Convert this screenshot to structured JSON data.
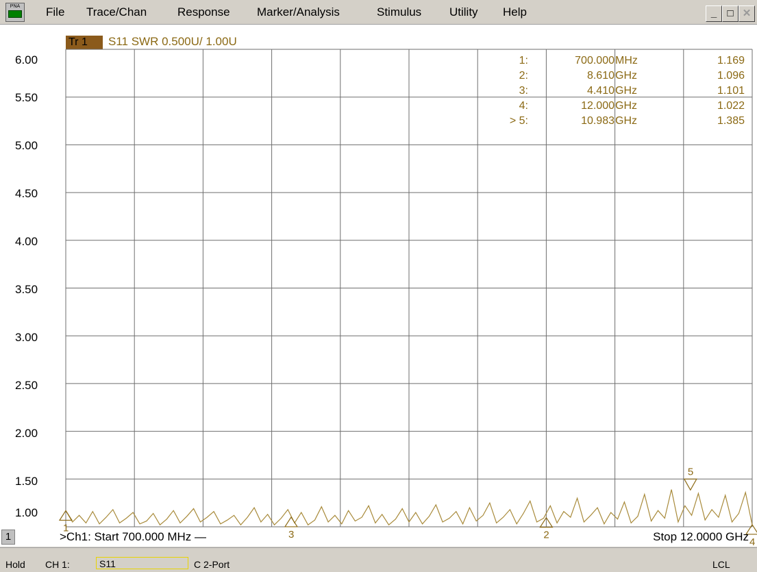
{
  "menu": {
    "app_icon_label": "PNA",
    "items": [
      "File",
      "Trace/Chan",
      "Response",
      "Marker/Analysis",
      "Stimulus",
      "Utility",
      "Help"
    ]
  },
  "window_controls": {
    "minimize": "_",
    "restore": "□",
    "close": "✕"
  },
  "trace": {
    "badge": "Tr 1",
    "label": "S11 SWR 0.500U/  1.00U"
  },
  "markers_table": [
    {
      "id": "1:",
      "value": "700.000",
      "unit": "MHz",
      "reading": "1.169"
    },
    {
      "id": "2:",
      "value": "8.610",
      "unit": "GHz",
      "reading": "1.096"
    },
    {
      "id": "3:",
      "value": "4.410",
      "unit": "GHz",
      "reading": "1.101"
    },
    {
      "id": "4:",
      "value": "12.000",
      "unit": "GHz",
      "reading": "1.022"
    },
    {
      "id": "> 5:",
      "value": "10.983",
      "unit": "GHz",
      "reading": "1.385"
    }
  ],
  "chart_data": {
    "type": "line",
    "x_start_ghz": 0.7,
    "x_stop_ghz": 12.0,
    "ylim": [
      1.0,
      6.0
    ],
    "y_ticks": [
      "6.00",
      "5.50",
      "5.00",
      "4.50",
      "4.00",
      "3.50",
      "3.00",
      "2.50",
      "2.00",
      "1.50",
      "1.00"
    ],
    "trace_color": "#8b6914",
    "marker_points": [
      {
        "label": "1",
        "x": 0.7,
        "y": 1.169
      },
      {
        "label": "2",
        "x": 8.61,
        "y": 1.096
      },
      {
        "label": "3",
        "x": 4.41,
        "y": 1.101
      },
      {
        "label": "4",
        "x": 12.0,
        "y": 1.022
      },
      {
        "label": "5",
        "x": 10.983,
        "y": 1.385
      }
    ],
    "series": [
      {
        "y": [
          1.17,
          1.05,
          1.12,
          1.04,
          1.16,
          1.03,
          1.1,
          1.18,
          1.04,
          1.09,
          1.15,
          1.03,
          1.06,
          1.14,
          1.02,
          1.08,
          1.17,
          1.04,
          1.11,
          1.19,
          1.05,
          1.1,
          1.16,
          1.03,
          1.07,
          1.12,
          1.02,
          1.1,
          1.2,
          1.05,
          1.13,
          1.02,
          1.09,
          1.18,
          1.04,
          1.15,
          1.02,
          1.07,
          1.21,
          1.05,
          1.12,
          1.03,
          1.17,
          1.06,
          1.1,
          1.22,
          1.04,
          1.13,
          1.02,
          1.08,
          1.19,
          1.05,
          1.15,
          1.03,
          1.11,
          1.23,
          1.05,
          1.09,
          1.16,
          1.03,
          1.2,
          1.06,
          1.12,
          1.25,
          1.04,
          1.1,
          1.18,
          1.03,
          1.14,
          1.27,
          1.05,
          1.09,
          1.22,
          1.04,
          1.16,
          1.1,
          1.3,
          1.05,
          1.12,
          1.2,
          1.03,
          1.15,
          1.08,
          1.26,
          1.04,
          1.11,
          1.34,
          1.06,
          1.17,
          1.09,
          1.39,
          1.05,
          1.22,
          1.12,
          1.35,
          1.07,
          1.18,
          1.1,
          1.33,
          1.05,
          1.14,
          1.36,
          1.02
        ]
      }
    ]
  },
  "sweep": {
    "start_label": ">Ch1: Start  700.000 MHz —",
    "stop_label": "Stop  12.0000 GHz"
  },
  "channel_num": "1",
  "status": {
    "hold": "Hold",
    "ch": "CH 1:",
    "meas": "S11",
    "cal": "C  2-Port",
    "lcl": "LCL"
  }
}
